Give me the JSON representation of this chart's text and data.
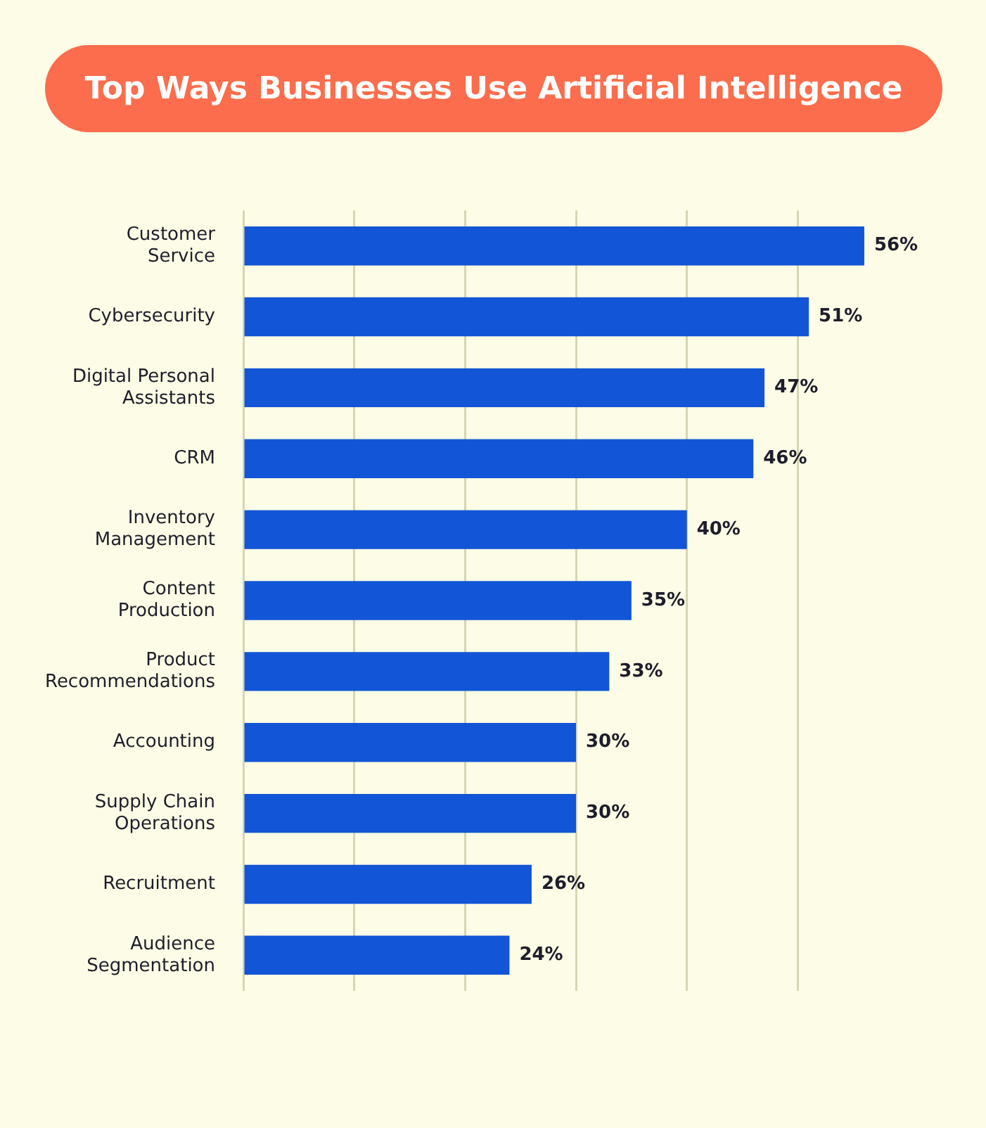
{
  "chart_data": {
    "type": "bar",
    "orientation": "horizontal",
    "title": "Top Ways Businesses Use Artificial Intelligence",
    "categories": [
      "Customer Service",
      "Cybersecurity",
      "Digital Personal Assistants",
      "CRM",
      "Inventory Management",
      "Content Production",
      "Product Recommendations",
      "Accounting",
      "Supply Chain Operations",
      "Recruitment",
      "Audience Segmentation"
    ],
    "values": [
      56,
      51,
      47,
      46,
      40,
      35,
      33,
      30,
      30,
      26,
      24
    ],
    "value_labels": [
      "56%",
      "51%",
      "47%",
      "46%",
      "40%",
      "35%",
      "33%",
      "30%",
      "30%",
      "26%",
      "24%"
    ],
    "color": "#1255d6",
    "xticks": [
      {
        "value": 0,
        "label": null
      },
      {
        "value": 10,
        "label": null
      },
      {
        "value": 20,
        "label": null
      },
      {
        "value": 30,
        "label": null
      },
      {
        "value": 40,
        "label": null
      },
      {
        "value": 50,
        "label": null
      }
    ],
    "grid": "x",
    "tick_labels": "y",
    "legend": false
  }
}
